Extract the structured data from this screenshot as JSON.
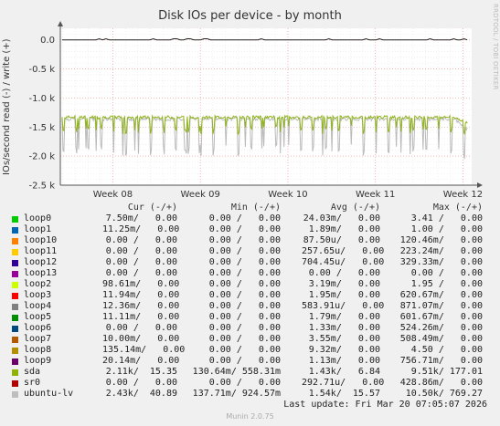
{
  "chart_data": {
    "type": "line",
    "title": "Disk IOs per device - by month",
    "ylabel": "IOs/second read (-) / write (+)",
    "side_label": "RRDTOOL / TOBI OETIKER",
    "ylim": [
      -2.5,
      0.2
    ],
    "yticks": [
      "0.0",
      "-0.5 k",
      "-1.0 k",
      "-1.5 k",
      "-2.0 k",
      "-2.5 k"
    ],
    "ytick_values": [
      0,
      -0.5,
      -1.0,
      -1.5,
      -2.0,
      -2.5
    ],
    "x_range_weeks": [
      7.4,
      12.1
    ],
    "xticks": [
      "Week 08",
      "Week 09",
      "Week 10",
      "Week 11",
      "Week 12"
    ],
    "xtick_values": [
      8,
      9,
      10,
      11,
      12
    ],
    "grid": true,
    "series": [
      {
        "name": "sda",
        "color": "#8fb31a",
        "level_k": -1.33,
        "dip_k": -1.7
      },
      {
        "name": "ubuntu-lv",
        "color": "#bbbbbb",
        "level_k": -1.36,
        "dip_k": -2.1
      }
    ]
  },
  "legend": {
    "headers": {
      "cur": "Cur (-/+)",
      "min": "Min (-/+)",
      "avg": "Avg (-/+)",
      "max": "Max (-/+)"
    },
    "rows": [
      {
        "name": "loop0",
        "color": "#00cc00",
        "cur": "7.50m/   0.00",
        "min": "0.00 /   0.00",
        "avg": "24.03m/   0.00",
        "max": "3.41 /   0.00"
      },
      {
        "name": "loop1",
        "color": "#0066b3",
        "cur": "11.25m/   0.00",
        "min": "0.00 /   0.00",
        "avg": "1.89m/   0.00",
        "max": "1.00 /   0.00"
      },
      {
        "name": "loop10",
        "color": "#ff8000",
        "cur": "0.00 /   0.00",
        "min": "0.00 /   0.00",
        "avg": "87.50u/   0.00",
        "max": "120.46m/   0.00"
      },
      {
        "name": "loop11",
        "color": "#ffcc00",
        "cur": "0.00 /   0.00",
        "min": "0.00 /   0.00",
        "avg": "257.65u/   0.00",
        "max": "223.24m/   0.00"
      },
      {
        "name": "loop12",
        "color": "#330099",
        "cur": "0.00 /   0.00",
        "min": "0.00 /   0.00",
        "avg": "704.45u/   0.00",
        "max": "329.33m/   0.00"
      },
      {
        "name": "loop13",
        "color": "#990099",
        "cur": "0.00 /   0.00",
        "min": "0.00 /   0.00",
        "avg": "0.00 /   0.00",
        "max": "0.00 /   0.00"
      },
      {
        "name": "loop2",
        "color": "#ccff00",
        "cur": "98.61m/   0.00",
        "min": "0.00 /   0.00",
        "avg": "3.19m/   0.00",
        "max": "1.95 /   0.00"
      },
      {
        "name": "loop3",
        "color": "#ff0000",
        "cur": "11.94m/   0.00",
        "min": "0.00 /   0.00",
        "avg": "1.95m/   0.00",
        "max": "620.67m/   0.00"
      },
      {
        "name": "loop4",
        "color": "#808080",
        "cur": "12.36m/   0.00",
        "min": "0.00 /   0.00",
        "avg": "583.91u/   0.00",
        "max": "871.07m/   0.00"
      },
      {
        "name": "loop5",
        "color": "#008f00",
        "cur": "11.11m/   0.00",
        "min": "0.00 /   0.00",
        "avg": "1.79m/   0.00",
        "max": "601.67m/   0.00"
      },
      {
        "name": "loop6",
        "color": "#00487d",
        "cur": "0.00 /   0.00",
        "min": "0.00 /   0.00",
        "avg": "1.33m/   0.00",
        "max": "524.26m/   0.00"
      },
      {
        "name": "loop7",
        "color": "#b35a00",
        "cur": "10.00m/   0.00",
        "min": "0.00 /   0.00",
        "avg": "3.55m/   0.00",
        "max": "508.49m/   0.00"
      },
      {
        "name": "loop8",
        "color": "#b38f00",
        "cur": "135.14m/   0.00",
        "min": "0.00 /   0.00",
        "avg": "9.32m/   0.00",
        "max": "4.50 /   0.00"
      },
      {
        "name": "loop9",
        "color": "#6b006b",
        "cur": "20.14m/   0.00",
        "min": "0.00 /   0.00",
        "avg": "1.13m/   0.00",
        "max": "756.71m/   0.00"
      },
      {
        "name": "sda",
        "color": "#8fb300",
        "cur": "2.11k/  15.35",
        "min": "130.64m/ 558.31m",
        "avg": "1.43k/   6.84",
        "max": "9.51k/ 177.01"
      },
      {
        "name": "sr0",
        "color": "#b30000",
        "cur": "0.00 /   0.00",
        "min": "0.00 /   0.00",
        "avg": "292.71u/   0.00",
        "max": "428.86m/   0.00"
      },
      {
        "name": "ubuntu-lv",
        "color": "#bebebe",
        "cur": "2.43k/  40.89",
        "min": "137.71m/ 924.57m",
        "avg": "1.54k/  15.57",
        "max": "10.50k/ 769.27"
      }
    ]
  },
  "footer": {
    "last_update": "Last update: Fri Mar 20 07:05:07 2026",
    "munin": "Munin 2.0.75"
  }
}
